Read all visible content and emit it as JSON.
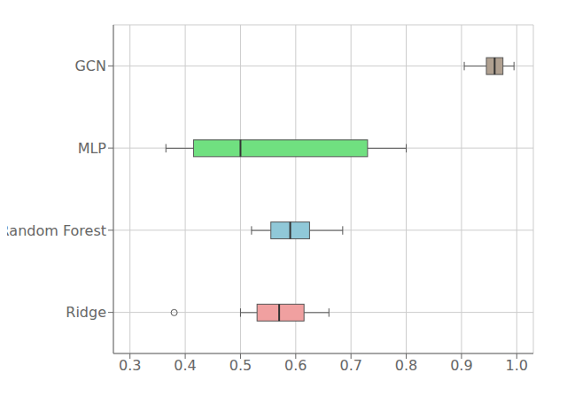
{
  "chart_data": {
    "type": "box",
    "orientation": "horizontal",
    "categories": [
      "GCN",
      "MLP",
      "Random Forest",
      "Ridge"
    ],
    "boxes": [
      {
        "whislo": 0.905,
        "q1": 0.945,
        "med": 0.96,
        "q3": 0.975,
        "whishi": 0.995,
        "fliers": []
      },
      {
        "whislo": 0.365,
        "q1": 0.415,
        "med": 0.5,
        "q3": 0.73,
        "whishi": 0.8,
        "fliers": []
      },
      {
        "whislo": 0.52,
        "q1": 0.555,
        "med": 0.59,
        "q3": 0.625,
        "whishi": 0.685,
        "fliers": []
      },
      {
        "whislo": 0.5,
        "q1": 0.53,
        "med": 0.57,
        "q3": 0.615,
        "whishi": 0.66,
        "fliers": [
          0.38
        ]
      }
    ],
    "colors": [
      "#b0a090",
      "#70e080",
      "#90c8d8",
      "#f0a0a0"
    ],
    "xlim": [
      0.27,
      1.03
    ],
    "xticks": [
      0.3,
      0.4,
      0.5,
      0.6,
      0.7,
      0.8,
      0.9,
      {
        "value": 1.0,
        "label": "1.0"
      }
    ],
    "grid": true
  }
}
